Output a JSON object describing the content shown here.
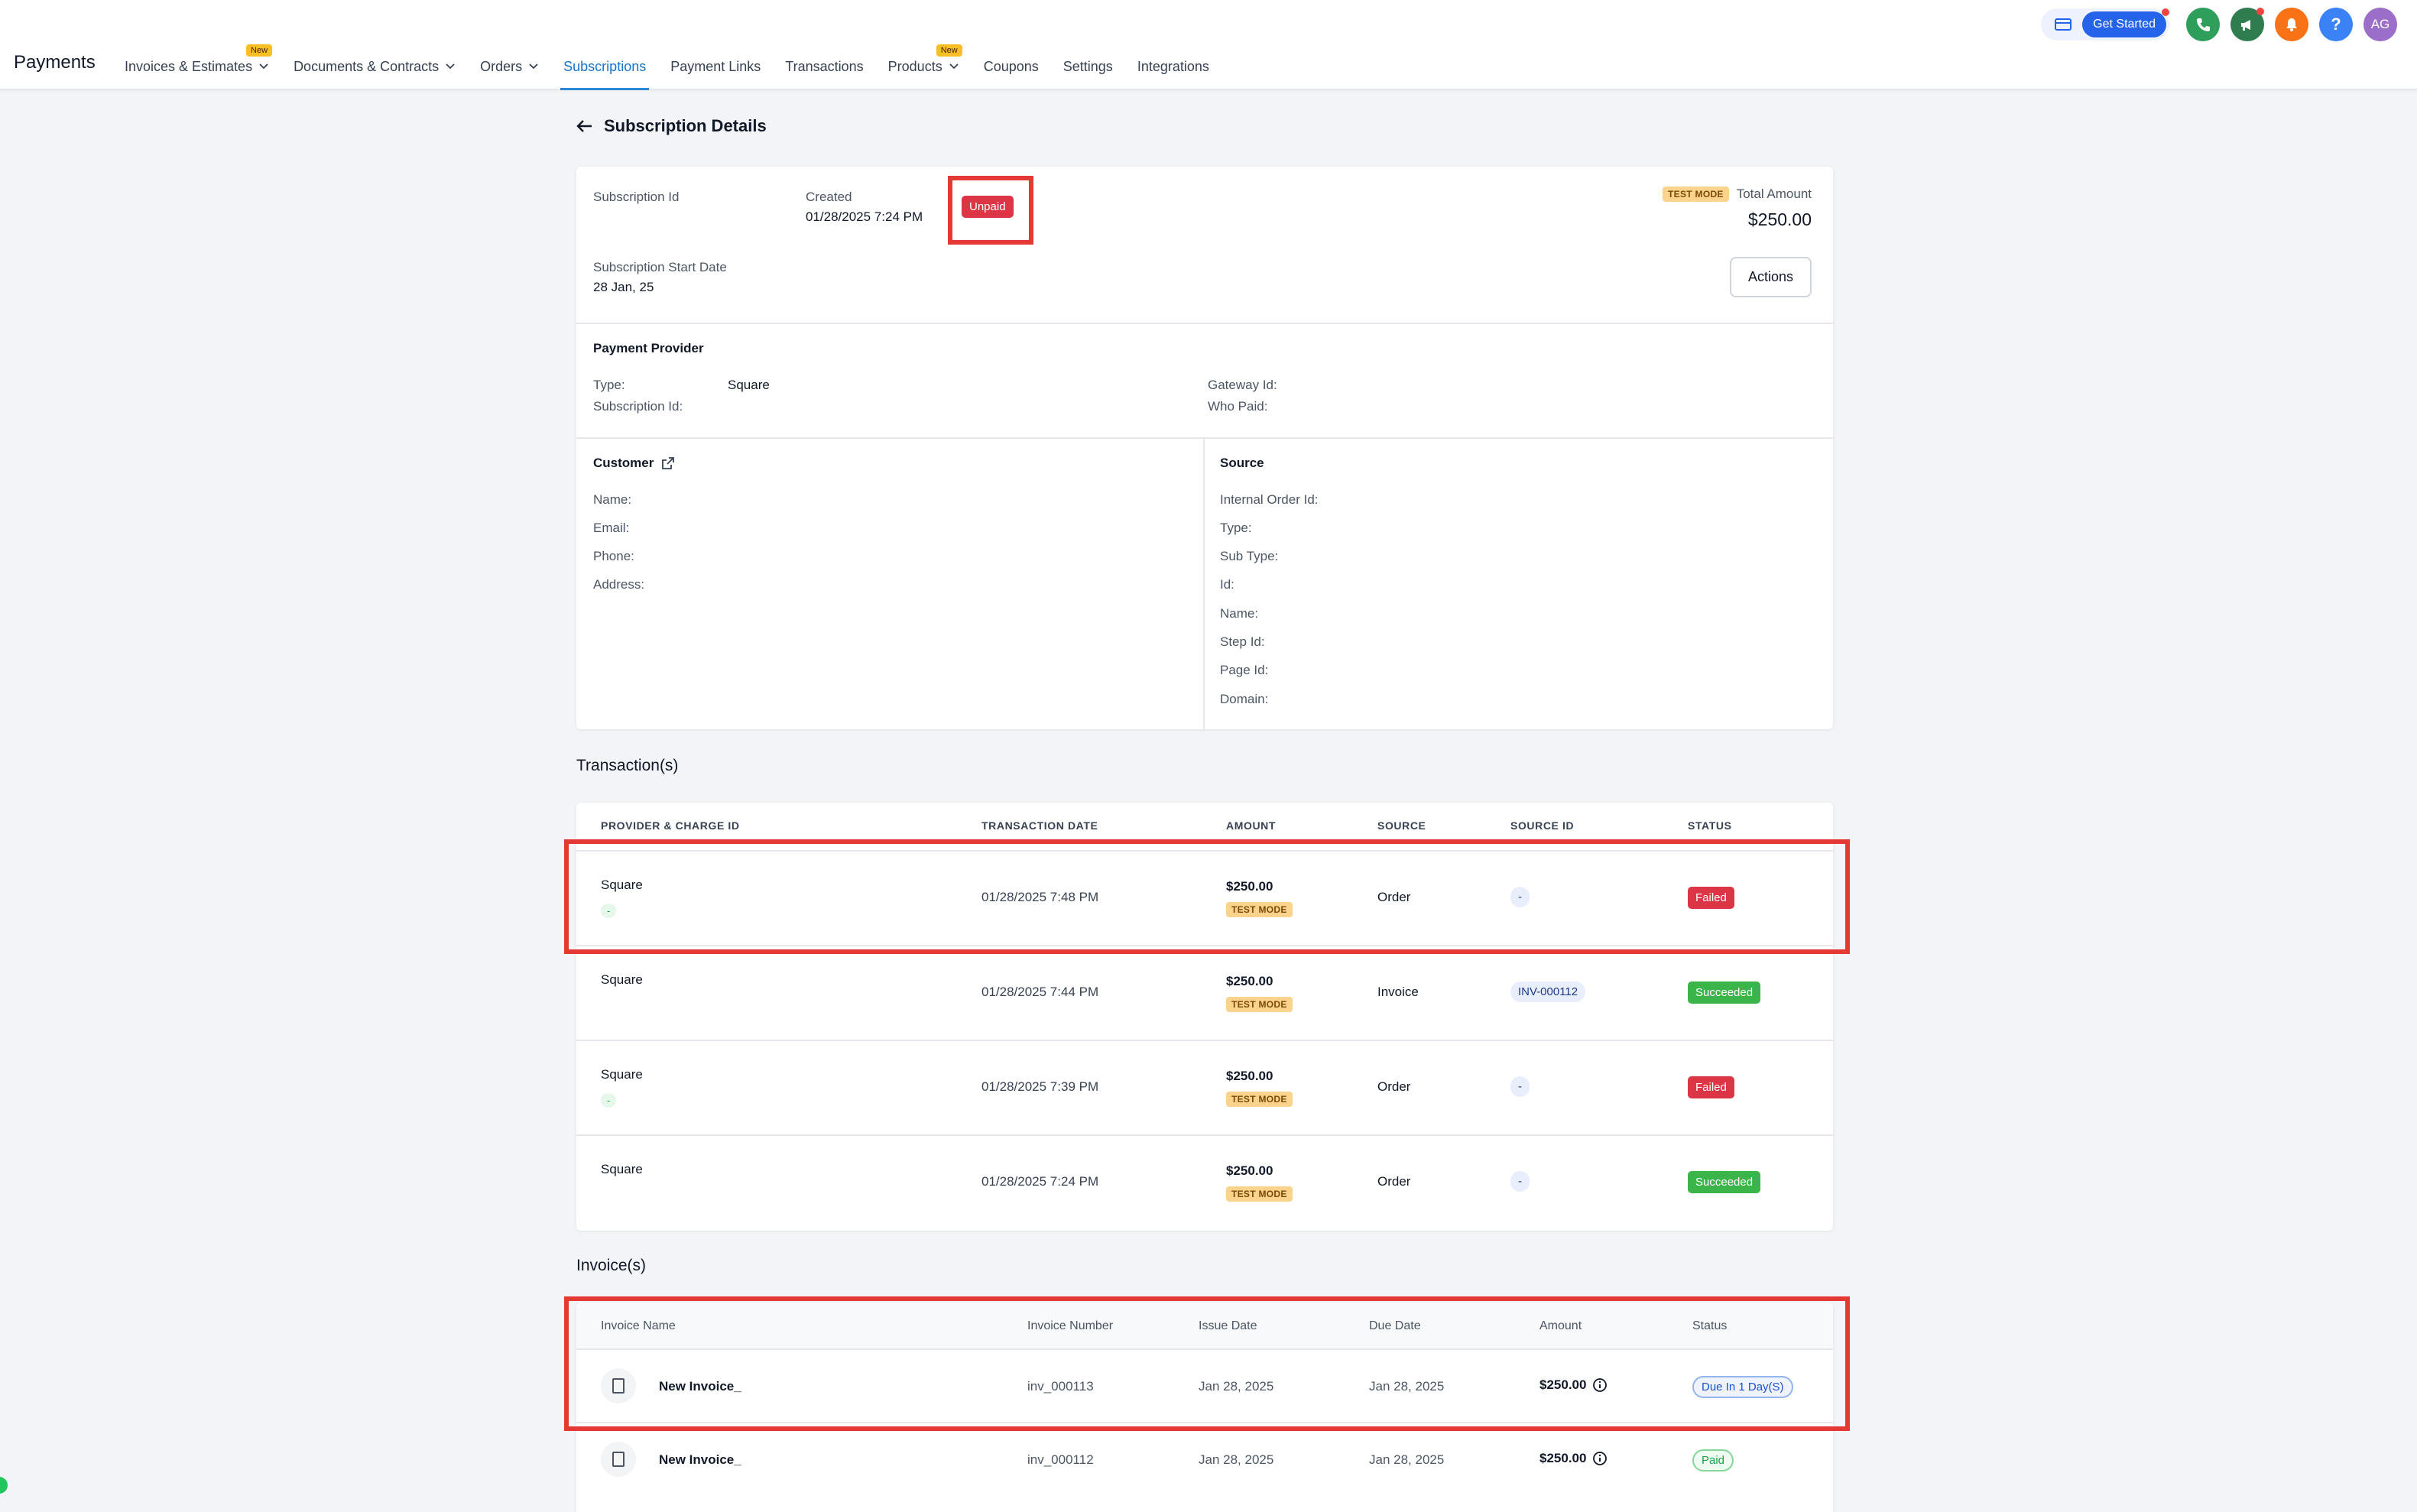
{
  "app": {
    "title": "Payments"
  },
  "nav": {
    "items": [
      {
        "label": "Invoices & Estimates",
        "has_dropdown": true,
        "new": true
      },
      {
        "label": "Documents & Contracts",
        "has_dropdown": true,
        "new": false
      },
      {
        "label": "Orders",
        "has_dropdown": true,
        "new": false
      },
      {
        "label": "Subscriptions",
        "has_dropdown": false,
        "new": false,
        "active": true
      },
      {
        "label": "Payment Links",
        "has_dropdown": false,
        "new": false
      },
      {
        "label": "Transactions",
        "has_dropdown": false,
        "new": false
      },
      {
        "label": "Products",
        "has_dropdown": true,
        "new": true
      },
      {
        "label": "Coupons",
        "has_dropdown": false,
        "new": false
      },
      {
        "label": "Settings",
        "has_dropdown": false,
        "new": false
      },
      {
        "label": "Integrations",
        "has_dropdown": false,
        "new": false
      }
    ],
    "new_badge": "New"
  },
  "header_actions": {
    "get_started": "Get Started",
    "help": "?",
    "avatar_initials": "AG",
    "colors": {
      "phone": "#2e9e5b",
      "megaphone": "#2f7d4f",
      "bell": "#f97316",
      "help": "#3b82f6",
      "avatar": "#9b6fc9"
    }
  },
  "page": {
    "title": "Subscription Details"
  },
  "summary": {
    "subscription_id_label": "Subscription Id",
    "created_label": "Created",
    "created_value": "01/28/2025 7:24 PM",
    "status": "Unpaid",
    "test_mode": "TEST MODE",
    "total_amount_label": "Total Amount",
    "total_amount": "$250.00",
    "start_date_label": "Subscription Start Date",
    "start_date": "28 Jan, 25",
    "actions_label": "Actions"
  },
  "payment_provider": {
    "heading": "Payment Provider",
    "type_label": "Type:",
    "type_value": "Square",
    "subscription_id_label": "Subscription Id:",
    "gateway_id_label": "Gateway Id:",
    "who_paid_label": "Who Paid:"
  },
  "customer": {
    "heading": "Customer",
    "fields": [
      "Name:",
      "Email:",
      "Phone:",
      "Address:"
    ]
  },
  "source": {
    "heading": "Source",
    "fields": [
      "Internal Order Id:",
      "Type:",
      "Sub Type:",
      "Id:",
      "Name:",
      "Step Id:",
      "Page Id:",
      "Domain:"
    ]
  },
  "transactions": {
    "heading": "Transaction(s)",
    "columns": [
      "PROVIDER & CHARGE ID",
      "TRANSACTION DATE",
      "AMOUNT",
      "SOURCE",
      "SOURCE ID",
      "STATUS"
    ],
    "rows": [
      {
        "provider": "Square",
        "charge_id": "-",
        "date": "01/28/2025 7:48 PM",
        "amount": "$250.00",
        "mode": "TEST MODE",
        "source": "Order",
        "source_id": "-",
        "status": "Failed"
      },
      {
        "provider": "Square",
        "charge_id": "",
        "date": "01/28/2025 7:44 PM",
        "amount": "$250.00",
        "mode": "TEST MODE",
        "source": "Invoice",
        "source_id": "INV-000112",
        "status": "Succeeded"
      },
      {
        "provider": "Square",
        "charge_id": "-",
        "date": "01/28/2025 7:39 PM",
        "amount": "$250.00",
        "mode": "TEST MODE",
        "source": "Order",
        "source_id": "-",
        "status": "Failed"
      },
      {
        "provider": "Square",
        "charge_id": "",
        "date": "01/28/2025 7:24 PM",
        "amount": "$250.00",
        "mode": "TEST MODE",
        "source": "Order",
        "source_id": "-",
        "status": "Succeeded"
      }
    ]
  },
  "invoices": {
    "heading": "Invoice(s)",
    "columns": [
      "Invoice Name",
      "Invoice Number",
      "Issue Date",
      "Due Date",
      "Amount",
      "Status"
    ],
    "rows": [
      {
        "name": "New Invoice_",
        "number": "inv_000113",
        "issue_date": "Jan 28, 2025",
        "due_date": "Jan 28, 2025",
        "amount": "$250.00",
        "status": "Due In 1 Day(S)"
      },
      {
        "name": "New Invoice_",
        "number": "inv_000112",
        "issue_date": "Jan 28, 2025",
        "due_date": "Jan 28, 2025",
        "amount": "$250.00",
        "status": "Paid"
      }
    ]
  }
}
